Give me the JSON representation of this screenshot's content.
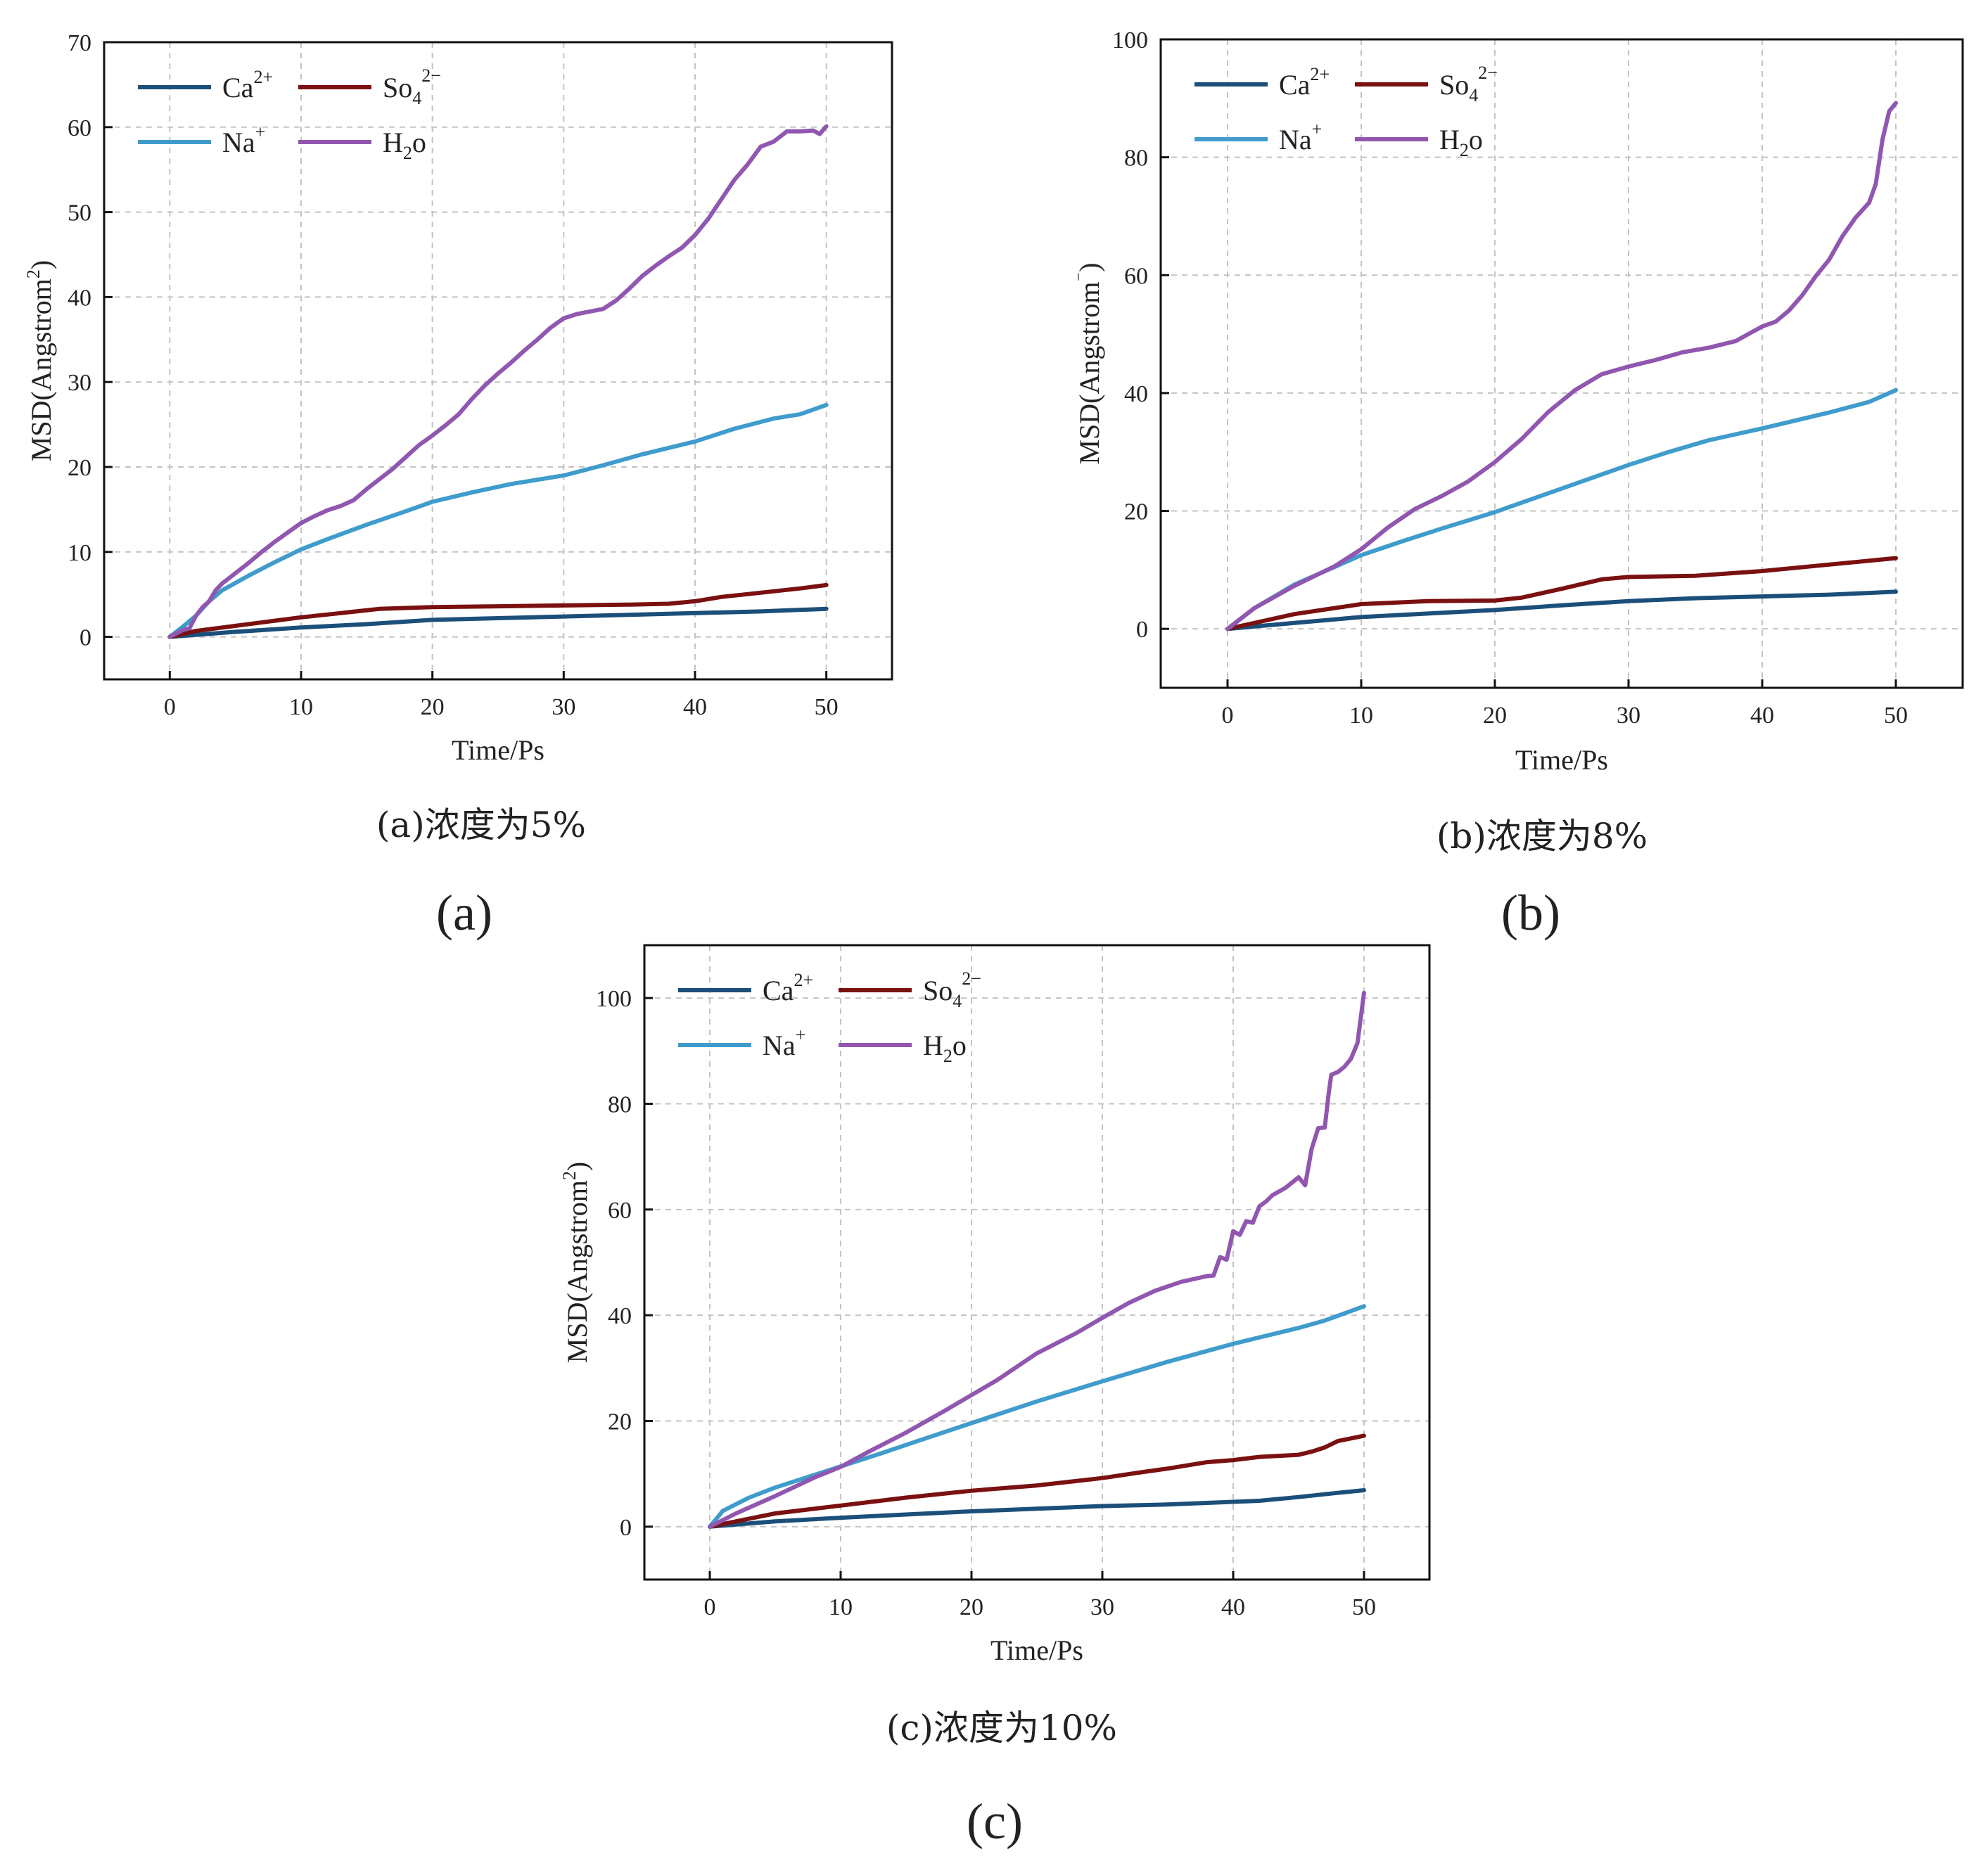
{
  "figure": {
    "series_meta": [
      {
        "key": "ca",
        "label": "Ca",
        "sup": "2+",
        "sub": "",
        "color": "#1b4f7a"
      },
      {
        "key": "so4",
        "label": "So",
        "sup": "2−",
        "sub": "4",
        "color": "#7a1010"
      },
      {
        "key": "na",
        "label": "Na",
        "sup": "+",
        "sub": "",
        "color": "#3f9ccc"
      },
      {
        "key": "h2o",
        "label": "H",
        "sup": "",
        "sub": "2",
        "tail": "o",
        "color": "#9157b0"
      }
    ]
  },
  "chart_data": [
    {
      "type": "line",
      "id": "a",
      "title": "",
      "caption": "(a)浓度为5%",
      "panel_label": "(a)",
      "xlabel": "Time/Ps",
      "ylabel": "MSD(Angstrom²)",
      "ylabel_main": "MSD(Angstrom",
      "ylabel_sup": "2",
      "ylabel_tail": ")",
      "xlim": [
        -5,
        55
      ],
      "ylim": [
        -5,
        70
      ],
      "xticks": [
        0,
        10,
        20,
        30,
        40,
        50
      ],
      "yticks": [
        0,
        10,
        20,
        30,
        40,
        50,
        60,
        70
      ],
      "grid": true,
      "legend": "top-left",
      "series": [
        {
          "key": "ca",
          "name": "Ca2+",
          "x": [
            0,
            5,
            10,
            15,
            20,
            25,
            30,
            35,
            40,
            45,
            50
          ],
          "values": [
            0,
            0.6,
            1.1,
            1.5,
            2.0,
            2.2,
            2.4,
            2.6,
            2.8,
            3.0,
            3.3
          ]
        },
        {
          "key": "so4",
          "name": "So4 2-",
          "x": [
            0,
            2,
            5,
            8,
            10,
            13,
            16,
            20,
            25,
            30,
            35,
            38,
            40,
            42,
            45,
            48,
            50
          ],
          "values": [
            0,
            0.7,
            1.3,
            1.9,
            2.3,
            2.8,
            3.3,
            3.5,
            3.6,
            3.7,
            3.8,
            3.9,
            4.2,
            4.7,
            5.2,
            5.7,
            6.1
          ]
        },
        {
          "key": "na",
          "name": "Na+",
          "x": [
            0,
            1,
            2,
            3,
            4,
            6,
            8,
            10,
            12,
            15,
            18,
            20,
            23,
            26,
            30,
            33,
            36,
            40,
            43,
            46,
            48,
            50
          ],
          "values": [
            0,
            1.2,
            2.5,
            4.2,
            5.5,
            7.2,
            8.8,
            10.3,
            11.5,
            13.2,
            14.8,
            15.9,
            17.0,
            18.0,
            19.0,
            20.2,
            21.5,
            23.0,
            24.5,
            25.7,
            26.2,
            27.3
          ]
        },
        {
          "key": "h2o",
          "name": "H2o",
          "x": [
            0,
            1,
            1.5,
            2,
            2.5,
            3,
            3.5,
            4,
            5,
            6,
            7,
            8,
            9,
            10,
            11,
            12,
            13,
            14,
            15,
            16,
            17,
            18,
            19,
            20,
            21,
            22,
            23,
            24,
            25,
            26,
            27,
            28,
            29,
            30,
            31,
            32,
            33,
            34,
            35,
            36,
            37,
            38,
            39,
            40,
            41,
            42,
            43,
            44,
            45,
            46,
            47,
            48,
            49,
            49.5,
            50
          ],
          "values": [
            0,
            0.8,
            1.0,
            2.5,
            3.5,
            4.2,
            5.5,
            6.3,
            7.5,
            8.7,
            10.0,
            11.2,
            12.3,
            13.4,
            14.2,
            14.9,
            15.4,
            16.1,
            17.4,
            18.6,
            19.8,
            21.2,
            22.6,
            23.7,
            24.9,
            26.2,
            28.0,
            29.6,
            31.0,
            32.3,
            33.7,
            35.0,
            36.4,
            37.5,
            38.0,
            38.3,
            38.6,
            39.6,
            41.0,
            42.5,
            43.7,
            44.8,
            45.8,
            47.3,
            49.2,
            51.5,
            53.8,
            55.6,
            57.7,
            58.3,
            59.5,
            59.5,
            59.6,
            59.2,
            60.1
          ]
        }
      ]
    },
    {
      "type": "line",
      "id": "b",
      "title": "",
      "caption": "(b)浓度为8%",
      "panel_label": "(b)",
      "xlabel": "Time/Ps",
      "ylabel": "MSD(Angstrom⁻)",
      "ylabel_main": "MSD(Angstrom",
      "ylabel_sup": "⁻",
      "ylabel_tail": ")",
      "xlim": [
        -5,
        55
      ],
      "ylim": [
        -10,
        100
      ],
      "xticks": [
        0,
        10,
        20,
        30,
        40,
        50
      ],
      "yticks": [
        0,
        20,
        40,
        60,
        80,
        100
      ],
      "grid": true,
      "legend": "top-left",
      "series": [
        {
          "key": "ca",
          "name": "Ca2+",
          "x": [
            0,
            5,
            10,
            15,
            20,
            25,
            30,
            35,
            40,
            45,
            50
          ],
          "values": [
            0,
            1.0,
            2.0,
            2.6,
            3.2,
            4.0,
            4.7,
            5.2,
            5.5,
            5.8,
            6.3
          ]
        },
        {
          "key": "so4",
          "name": "So4 2-",
          "x": [
            0,
            5,
            10,
            15,
            20,
            22,
            25,
            28,
            30,
            35,
            40,
            45,
            50
          ],
          "values": [
            0,
            2.5,
            4.2,
            4.7,
            4.8,
            5.3,
            6.8,
            8.4,
            8.8,
            9.0,
            9.8,
            10.9,
            12.0
          ]
        },
        {
          "key": "na",
          "name": "Na+",
          "x": [
            0,
            2,
            5,
            8,
            10,
            13,
            16,
            20,
            25,
            30,
            33,
            36,
            40,
            45,
            48,
            50
          ],
          "values": [
            0,
            3.5,
            7.5,
            10.5,
            12.5,
            14.8,
            17.0,
            19.8,
            23.8,
            27.8,
            30.0,
            32.0,
            34.0,
            36.7,
            38.5,
            40.5
          ]
        },
        {
          "key": "h2o",
          "name": "H2o",
          "x": [
            0,
            2,
            5,
            8,
            10,
            12,
            14,
            16,
            18,
            20,
            22,
            24,
            26,
            28,
            30,
            32,
            34,
            36,
            38,
            40,
            41,
            42,
            43,
            44,
            45,
            46,
            47,
            48,
            48.5,
            49,
            49.5,
            50
          ],
          "values": [
            0,
            3.5,
            7.3,
            10.6,
            13.5,
            17.2,
            20.3,
            22.5,
            25.0,
            28.3,
            32.2,
            36.8,
            40.5,
            43.2,
            44.5,
            45.6,
            46.9,
            47.7,
            48.8,
            51.3,
            52.1,
            54.0,
            56.6,
            59.8,
            62.6,
            66.6,
            69.8,
            72.3,
            75.5,
            83.0,
            87.8,
            89.2
          ]
        }
      ]
    },
    {
      "type": "line",
      "id": "c",
      "title": "",
      "caption": "(c)浓度为10%",
      "panel_label": "(c)",
      "xlabel": "Time/Ps",
      "ylabel": "MSD(Angstrom²)",
      "ylabel_main": "MSD(Angstrom",
      "ylabel_sup": "2",
      "ylabel_tail": ")",
      "xlim": [
        -5,
        55
      ],
      "ylim": [
        -10,
        110
      ],
      "xticks": [
        0,
        10,
        20,
        30,
        40,
        50
      ],
      "yticks": [
        0,
        20,
        40,
        60,
        80,
        100
      ],
      "grid": true,
      "legend": "top-left",
      "series": [
        {
          "key": "ca",
          "name": "Ca2+",
          "x": [
            0,
            5,
            10,
            15,
            20,
            25,
            30,
            35,
            40,
            42,
            45,
            48,
            50
          ],
          "values": [
            0,
            1.0,
            1.7,
            2.3,
            2.9,
            3.4,
            3.9,
            4.2,
            4.7,
            4.9,
            5.6,
            6.4,
            6.9
          ]
        },
        {
          "key": "so4",
          "name": "So4 2-",
          "x": [
            0,
            5,
            10,
            15,
            20,
            25,
            30,
            33,
            35,
            38,
            40,
            42,
            45,
            46,
            47,
            48,
            49,
            50
          ],
          "values": [
            0,
            2.5,
            4.0,
            5.5,
            6.8,
            7.8,
            9.2,
            10.3,
            11.0,
            12.2,
            12.6,
            13.2,
            13.6,
            14.2,
            15.0,
            16.2,
            16.7,
            17.2
          ]
        },
        {
          "key": "na",
          "name": "Na+",
          "x": [
            0,
            1,
            3,
            5,
            8,
            10,
            13,
            16,
            20,
            25,
            30,
            35,
            40,
            45,
            47,
            49,
            50
          ],
          "values": [
            0,
            3.0,
            5.5,
            7.4,
            9.8,
            11.4,
            13.8,
            16.3,
            19.6,
            23.7,
            27.5,
            31.2,
            34.6,
            37.6,
            39.0,
            40.8,
            41.7
          ]
        },
        {
          "key": "h2o",
          "name": "H2o",
          "x": [
            0,
            2,
            5,
            8,
            10,
            12,
            15,
            18,
            20,
            22,
            25,
            28,
            30,
            32,
            34,
            36,
            38,
            38.5,
            39,
            39.5,
            40,
            40.5,
            41,
            41.5,
            42,
            42.5,
            43,
            44,
            45,
            45.5,
            46,
            46.5,
            47,
            47.3,
            47.5,
            48,
            48.5,
            49,
            49.5,
            50
          ],
          "values": [
            0,
            2.5,
            5.8,
            9.3,
            11.3,
            14.0,
            17.8,
            22.0,
            24.9,
            27.8,
            32.8,
            36.6,
            39.5,
            42.3,
            44.6,
            46.3,
            47.4,
            47.5,
            51.0,
            50.5,
            55.9,
            55.2,
            57.8,
            57.5,
            60.6,
            61.5,
            62.7,
            64.1,
            66.1,
            64.6,
            71.5,
            75.4,
            75.5,
            82.0,
            85.5,
            86.0,
            87.0,
            88.5,
            91.5,
            101.0
          ]
        }
      ]
    }
  ]
}
